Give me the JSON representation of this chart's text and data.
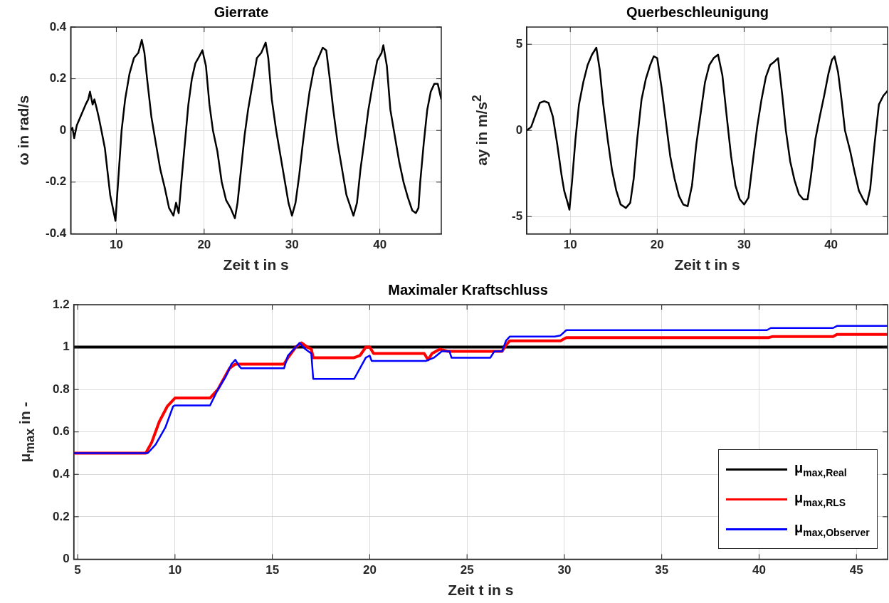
{
  "chart_data": [
    {
      "type": "line",
      "title": "Gierrate",
      "xlabel": "Zeit t in s",
      "ylabel": "ω in rad/s",
      "xlim": [
        4.8,
        47
      ],
      "xticks": [
        10,
        20,
        30,
        40
      ],
      "ylim": [
        -0.4,
        0.4
      ],
      "yticks": [
        -0.4,
        -0.2,
        0,
        0.2,
        0.4
      ],
      "grid": true,
      "legend": false,
      "marker": "none",
      "line_style": "solid",
      "x": [
        4.8,
        5.0,
        5.2,
        5.5,
        6,
        6.5,
        6.8,
        7,
        7.3,
        7.5,
        7.8,
        8,
        8.3,
        8.7,
        9,
        9.3,
        9.6,
        9.9,
        10.1,
        10.3,
        10.6,
        11,
        11.5,
        12,
        12.5,
        12.9,
        13.2,
        13.5,
        14,
        14.5,
        15,
        15.5,
        16,
        16.5,
        16.8,
        17.1,
        17.4,
        17.8,
        18.2,
        18.6,
        19,
        19.5,
        19.8,
        20.2,
        20.6,
        21,
        21.5,
        22,
        22.5,
        23,
        23.5,
        23.8,
        24.2,
        24.6,
        25,
        25.5,
        26,
        26.5,
        27,
        27.3,
        27.7,
        28.2,
        28.7,
        29.2,
        29.6,
        30,
        30.4,
        30.8,
        31.2,
        31.6,
        32,
        32.5,
        33,
        33.5,
        33.9,
        34.3,
        34.7,
        35.2,
        35.7,
        36.2,
        36.7,
        37,
        37.4,
        37.8,
        38.2,
        38.7,
        39.2,
        39.7,
        40.2,
        40.4,
        40.8,
        41.2,
        41.7,
        42.2,
        42.7,
        43.2,
        43.7,
        44.1,
        44.4,
        44.6,
        45,
        45.4,
        45.8,
        46.2,
        46.6,
        47
      ],
      "series": [
        {
          "color": "#000000",
          "values": [
            0.0,
            0.01,
            -0.03,
            0.02,
            0.06,
            0.1,
            0.12,
            0.15,
            0.1,
            0.12,
            0.08,
            0.05,
            0.0,
            -0.07,
            -0.16,
            -0.25,
            -0.3,
            -0.35,
            -0.25,
            -0.15,
            0.0,
            0.12,
            0.22,
            0.28,
            0.3,
            0.35,
            0.3,
            0.2,
            0.05,
            -0.05,
            -0.15,
            -0.22,
            -0.3,
            -0.33,
            -0.28,
            -0.32,
            -0.2,
            -0.05,
            0.1,
            0.2,
            0.26,
            0.29,
            0.31,
            0.25,
            0.1,
            0.0,
            -0.08,
            -0.2,
            -0.27,
            -0.3,
            -0.34,
            -0.28,
            -0.15,
            -0.02,
            0.08,
            0.18,
            0.28,
            0.3,
            0.34,
            0.28,
            0.12,
            0.0,
            -0.1,
            -0.2,
            -0.28,
            -0.33,
            -0.28,
            -0.18,
            -0.06,
            0.05,
            0.15,
            0.24,
            0.28,
            0.32,
            0.31,
            0.2,
            0.08,
            -0.05,
            -0.15,
            -0.25,
            -0.3,
            -0.33,
            -0.28,
            -0.15,
            -0.05,
            0.08,
            0.18,
            0.27,
            0.3,
            0.33,
            0.25,
            0.08,
            -0.02,
            -0.12,
            -0.2,
            -0.26,
            -0.31,
            -0.32,
            -0.3,
            -0.2,
            -0.05,
            0.08,
            0.15,
            0.18,
            0.18,
            0.12
          ]
        }
      ]
    },
    {
      "type": "line",
      "title": "Querbeschleunigung",
      "xlabel": "Zeit t in s",
      "ylabel": "ay in m/s$^{2}$",
      "xlim": [
        5,
        46.5
      ],
      "xticks": [
        10,
        20,
        30,
        40
      ],
      "ylim": [
        -6,
        6
      ],
      "yticks": [
        -5,
        0,
        5
      ],
      "grid": true,
      "legend": false,
      "marker": "none",
      "line_style": "solid",
      "x": [
        5,
        5.5,
        6,
        6.5,
        7,
        7.5,
        8,
        8.5,
        9,
        9.3,
        9.7,
        9.9,
        10.2,
        10.6,
        11,
        11.5,
        12,
        12.5,
        13,
        13.4,
        13.8,
        14.3,
        14.8,
        15.3,
        15.8,
        16.4,
        16.9,
        17.3,
        17.7,
        18.2,
        18.7,
        19.2,
        19.6,
        20,
        20.5,
        21,
        21.5,
        22,
        22.5,
        23,
        23.5,
        24,
        24.5,
        25,
        25.5,
        26,
        26.5,
        27,
        27.5,
        28,
        28.5,
        29,
        29.5,
        30,
        30.5,
        31,
        31.5,
        32,
        32.5,
        33,
        33.5,
        33.9,
        34.4,
        34.8,
        35.3,
        35.8,
        36.3,
        36.8,
        37.3,
        37.7,
        38.2,
        38.7,
        39.2,
        39.7,
        40.1,
        40.4,
        40.8,
        41.2,
        41.6,
        42.2,
        42.7,
        43.2,
        43.7,
        44.1,
        44.5,
        45,
        45.5,
        46,
        46.5
      ],
      "series": [
        {
          "color": "#000000",
          "values": [
            0.0,
            0.2,
            0.9,
            1.6,
            1.7,
            1.6,
            0.8,
            -0.8,
            -2.6,
            -3.5,
            -4.2,
            -4.6,
            -3,
            -0.5,
            1.5,
            2.8,
            3.8,
            4.4,
            4.8,
            3.5,
            1.5,
            -0.5,
            -2.3,
            -3.5,
            -4.3,
            -4.5,
            -4.2,
            -2.8,
            -0.5,
            1.8,
            3.0,
            3.8,
            4.3,
            4.2,
            2.5,
            0.5,
            -1.5,
            -2.8,
            -3.8,
            -4.3,
            -4.4,
            -3.2,
            -0.8,
            1.0,
            2.8,
            3.8,
            4.2,
            4.4,
            3.2,
            0.8,
            -1.5,
            -3.2,
            -4.0,
            -4.3,
            -3.9,
            -1.8,
            0.2,
            1.8,
            3.1,
            3.8,
            4.0,
            4.2,
            2.0,
            0.0,
            -1.8,
            -2.9,
            -3.7,
            -4.0,
            -4.0,
            -2.6,
            -0.5,
            0.8,
            2.0,
            3.3,
            4.1,
            4.3,
            3.4,
            1.8,
            0.0,
            -1.2,
            -2.4,
            -3.5,
            -4.0,
            -4.3,
            -3.4,
            -0.8,
            1.5,
            2.0,
            2.3
          ]
        }
      ]
    },
    {
      "type": "line",
      "title": "Maximaler Kraftschluss",
      "xlabel": "Zeit t in s",
      "ylabel": "μ$_{max}$ in -",
      "xlim": [
        4.8,
        46.6
      ],
      "xticks": [
        5,
        10,
        15,
        20,
        25,
        30,
        35,
        40,
        45
      ],
      "ylim": [
        0,
        1.2
      ],
      "yticks": [
        0,
        0.2,
        0.4,
        0.6,
        0.8,
        1,
        1.2
      ],
      "grid": true,
      "legend": "bottom right",
      "marker": "none",
      "line_style": "solid",
      "series": [
        {
          "name": "μ$_{max,Real}$",
          "color": "#000000",
          "x": [
            4.8,
            46.6
          ],
          "values": [
            1,
            1
          ]
        },
        {
          "name": "μ$_{max,RLS}$",
          "color": "#ff0000",
          "x": [
            4.8,
            8.5,
            8.8,
            9.2,
            9.6,
            10,
            11.8,
            12.2,
            12.5,
            12.8,
            13.1,
            15.6,
            15.8,
            16.2,
            16.5,
            16.8,
            17.0,
            17.1,
            19.2,
            19.5,
            19.8,
            20.0,
            20.2,
            22.8,
            23.0,
            23.2,
            23.6,
            24.0,
            26.8,
            27.0,
            27.2,
            29.8,
            30.1,
            40.5,
            40.7,
            43.8,
            44.0,
            46.6
          ],
          "values": [
            0.5,
            0.5,
            0.55,
            0.65,
            0.72,
            0.76,
            0.76,
            0.8,
            0.85,
            0.9,
            0.92,
            0.92,
            0.95,
            1.0,
            1.02,
            1.0,
            0.99,
            0.95,
            0.95,
            0.96,
            1.0,
            1.0,
            0.97,
            0.97,
            0.94,
            0.97,
            0.99,
            0.98,
            0.98,
            1.01,
            1.03,
            1.03,
            1.045,
            1.045,
            1.05,
            1.05,
            1.06,
            1.06
          ]
        },
        {
          "name": "μ$_{max,Observer}$",
          "color": "#0000ff",
          "x": [
            4.8,
            8.6,
            9,
            9.5,
            9.9,
            10,
            11.8,
            12.2,
            12.6,
            12.9,
            13.1,
            13.3,
            13.4,
            15.6,
            15.8,
            16.0,
            16.2,
            16.4,
            16.7,
            17.0,
            17.1,
            19.2,
            19.5,
            19.8,
            20.0,
            20.1,
            22.9,
            23.3,
            23.7,
            24.1,
            24.2,
            26.2,
            26.4,
            26.8,
            27.0,
            27.2,
            29.5,
            29.8,
            30.1,
            40.4,
            40.6,
            43.8,
            44.0,
            46.6
          ],
          "values": [
            0.5,
            0.5,
            0.54,
            0.62,
            0.72,
            0.725,
            0.725,
            0.8,
            0.86,
            0.92,
            0.94,
            0.91,
            0.9,
            0.9,
            0.96,
            0.98,
            1.0,
            1.02,
            0.99,
            0.97,
            0.85,
            0.85,
            0.9,
            0.95,
            0.96,
            0.935,
            0.935,
            0.95,
            0.98,
            0.98,
            0.95,
            0.95,
            0.98,
            0.98,
            1.03,
            1.05,
            1.05,
            1.055,
            1.08,
            1.08,
            1.09,
            1.09,
            1.1,
            1.1
          ]
        }
      ]
    }
  ]
}
